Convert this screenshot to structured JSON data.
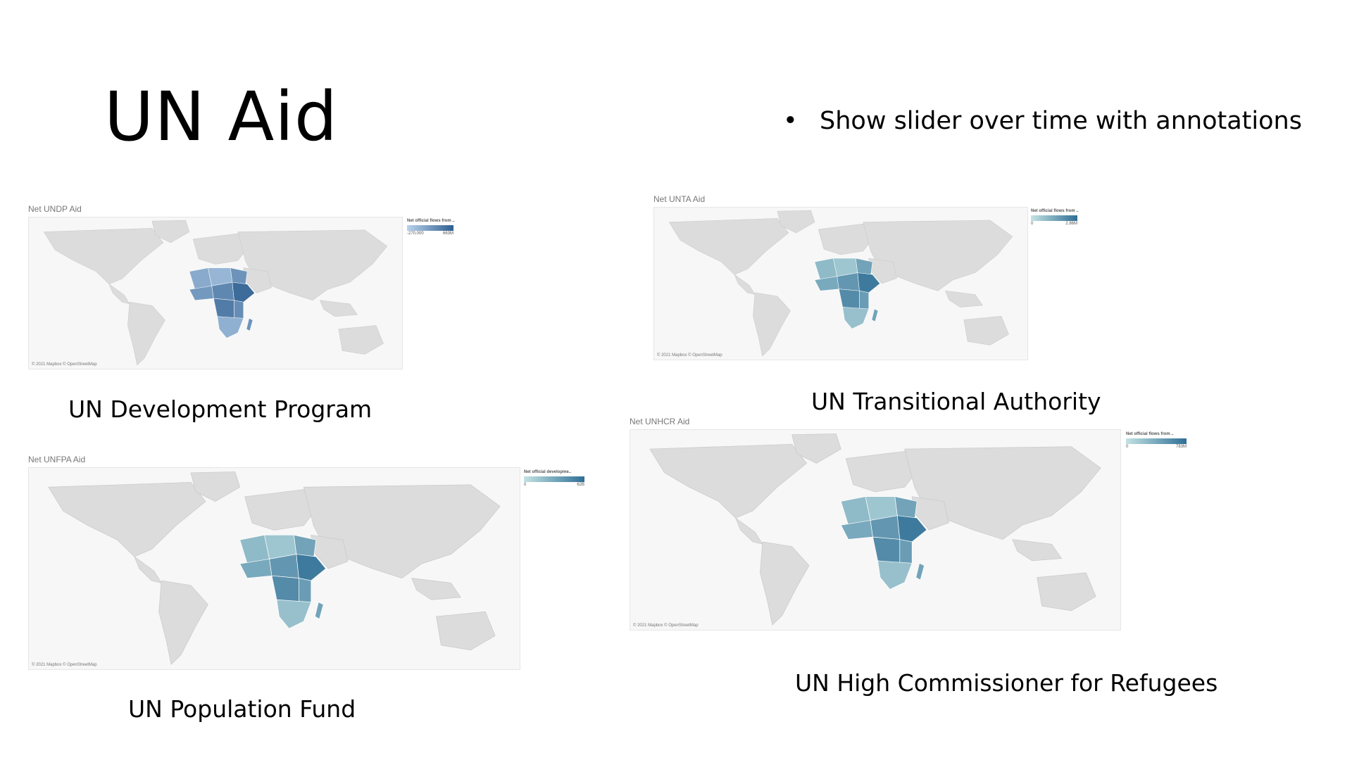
{
  "slide": {
    "title": "UN Aid",
    "bullet": "Show slider over time with annotations"
  },
  "maps": [
    {
      "id": "undp",
      "viz_title": "Net UNDP Aid",
      "caption": "UN Development Program",
      "attribution": "© 2021 Mapbox © OpenStreetMap",
      "legend_title": "Net official flows from ..",
      "legend_min": "-270,000",
      "legend_max": "663M",
      "color_low": "#b9d3ec",
      "color_high": "#2f5f91"
    },
    {
      "id": "unta",
      "viz_title": "Net UNTA Aid",
      "caption": "UN Transitional Authority",
      "attribution": "© 2021 Mapbox © OpenStreetMap",
      "legend_title": "Net official flows from ..",
      "legend_min": "0",
      "legend_max": "2.86M",
      "color_low": "#c3e3e3",
      "color_high": "#2f6e96"
    },
    {
      "id": "unfpa",
      "viz_title": "Net UNFPA Aid",
      "caption": "UN Population Fund",
      "attribution": "© 2021 Mapbox © OpenStreetMap",
      "legend_title": "Net official developme..",
      "legend_min": "0",
      "legend_max": "62B",
      "color_low": "#c3e3e3",
      "color_high": "#2f6e96"
    },
    {
      "id": "unhcr",
      "viz_title": "Net UNHCR Aid",
      "caption": "UN High Commissioner for Refugees",
      "attribution": "© 2021 Mapbox © OpenStreetMap",
      "legend_title": "Net official flows from ..",
      "legend_min": "0",
      "legend_max": "783M",
      "color_low": "#c3e3e3",
      "color_high": "#2f6e96"
    }
  ]
}
